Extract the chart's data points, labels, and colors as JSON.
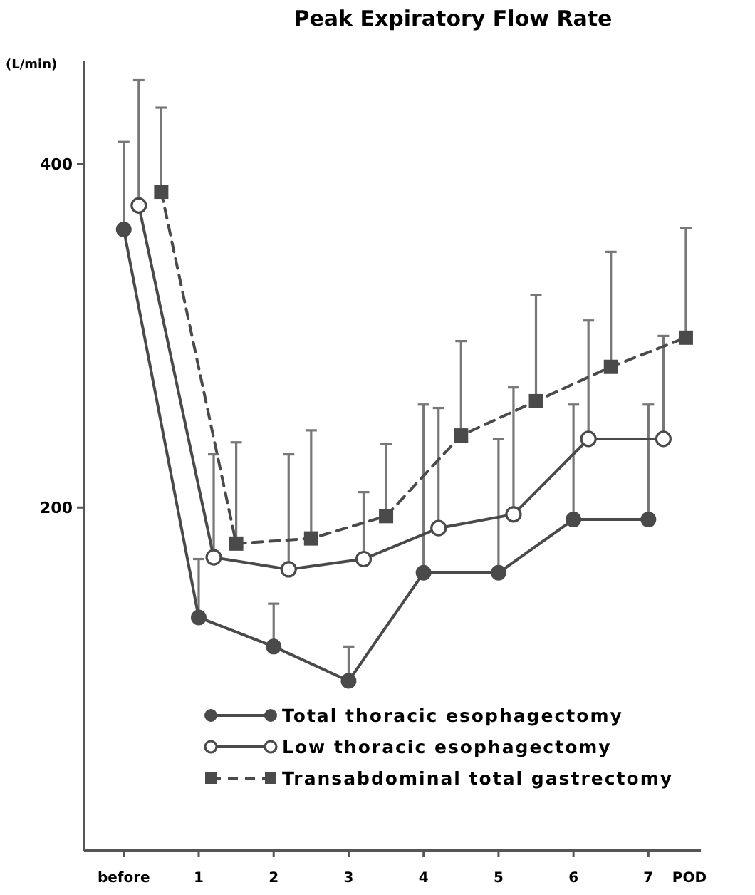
{
  "chart_data": {
    "type": "line",
    "title": "Peak Expiratory Flow Rate",
    "ylabel": "(L/min)",
    "xlabel": "POD",
    "xlim": [
      -0.53,
      7.7
    ],
    "xticks": [
      {
        "value": 0,
        "label": "before"
      },
      1,
      2,
      3,
      4,
      5,
      6,
      7
    ],
    "ylim": [
      0,
      460
    ],
    "yticks": [
      200,
      400
    ],
    "grid": false,
    "legend": "bottom right",
    "series": [
      {
        "name": "Total thoracic esophagectomy",
        "color": "#4a4a4a",
        "marker": "circle",
        "line_style": "solid",
        "x": [
          0,
          1,
          2,
          3,
          4,
          5,
          6,
          7
        ],
        "values": [
          362,
          136,
          119,
          99,
          162,
          162,
          193,
          193
        ],
        "errors": [
          [
            362,
            413
          ],
          [
            136,
            170
          ],
          [
            119,
            144
          ],
          [
            99,
            119
          ],
          [
            162,
            260
          ],
          [
            162,
            240
          ],
          [
            193,
            260
          ],
          [
            193,
            260
          ]
        ]
      },
      {
        "name": "Low thoracic esophagectomy",
        "color": "#4a4a4a",
        "marker": "circle-open",
        "line_style": "solid",
        "x": [
          0.2,
          1.2,
          2.2,
          3.2,
          4.2,
          5.2,
          6.2,
          7.2
        ],
        "values": [
          376,
          171,
          164,
          170,
          188,
          196,
          240,
          240
        ],
        "errors": [
          [
            376,
            449
          ],
          [
            171,
            231
          ],
          [
            164,
            231
          ],
          [
            170,
            209
          ],
          [
            188,
            258
          ],
          [
            196,
            270
          ],
          [
            240,
            309
          ],
          [
            240,
            300
          ]
        ]
      },
      {
        "name": "Transabdominal total gastrectomy",
        "color": "#4a4a4a",
        "marker": "square",
        "line_style": "dashed",
        "x": [
          0.5,
          1.5,
          2.5,
          3.5,
          4.5,
          5.5,
          6.5,
          7.5
        ],
        "values": [
          384,
          179,
          182,
          195,
          242,
          262,
          282,
          299
        ],
        "errors": [
          [
            384,
            433
          ],
          [
            179,
            238
          ],
          [
            182,
            245
          ],
          [
            195,
            237
          ],
          [
            242,
            297
          ],
          [
            262,
            324
          ],
          [
            282,
            349
          ],
          [
            299,
            363
          ]
        ]
      }
    ]
  }
}
